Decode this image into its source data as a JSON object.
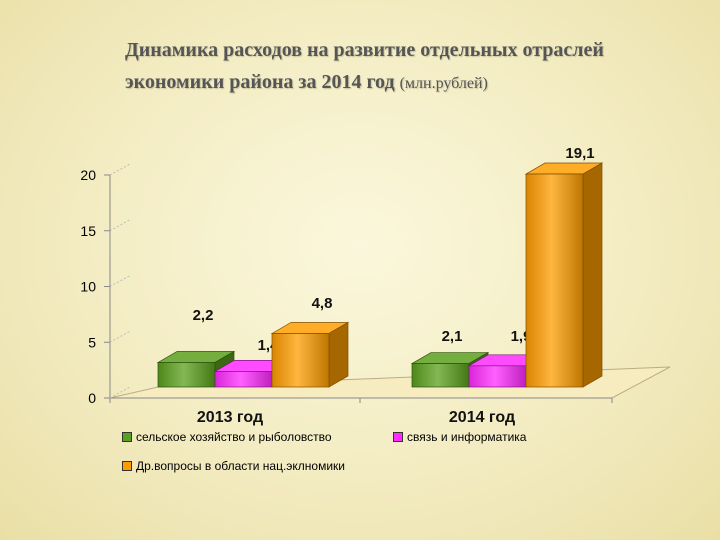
{
  "title_line1": "Динамика расходов на развитие отдельных отраслей",
  "title_line2": "экономики района за 2014 год",
  "title_unit": "(млн.рублей)",
  "chart_data": {
    "type": "bar",
    "categories": [
      "2013 год",
      "2014 год"
    ],
    "series": [
      {
        "name": "сельское хозяйство и рыболовство",
        "values": [
          2.2,
          2.1
        ],
        "labels": [
          "2,2",
          "2,1"
        ],
        "color": "#5aa01c"
      },
      {
        "name": "связь и информатика",
        "values": [
          1.4,
          1.9
        ],
        "labels": [
          "1,4",
          "1,9"
        ],
        "color": "#ff2bff"
      },
      {
        "name": "Др.вопросы в области нац.эклномики",
        "values": [
          4.8,
          19.1
        ],
        "labels": [
          "4,8",
          "19,1"
        ],
        "color": "#ff9d00"
      }
    ],
    "yticks": [
      0,
      5,
      10,
      15,
      20
    ],
    "ylim": [
      0,
      20
    ],
    "legend_position": "bottom",
    "grid": false,
    "three_d": true
  }
}
